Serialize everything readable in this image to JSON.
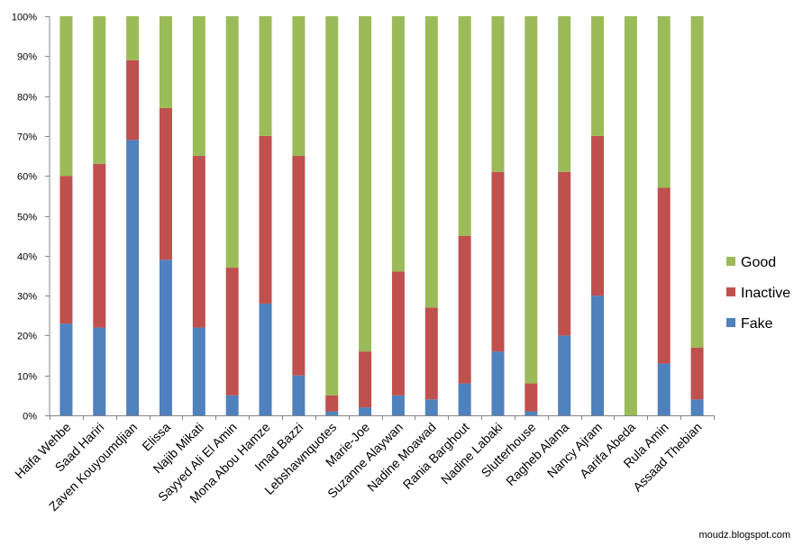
{
  "chart_data": {
    "type": "bar",
    "stacked": true,
    "percent": true,
    "categories": [
      "Haifa Wehbe",
      "Saad Hariri",
      "Zaven Kouyoumdjian",
      "Elissa",
      "Najib Mikati",
      "Sayyed Ali El Amin",
      "Mona Abou Hamze",
      "Imad Bazzi",
      "Lebshawnquotes",
      "Marie-Joe",
      "Suzanne Alaywan",
      "Nadine Moawad",
      "Rania Barghout",
      "Nadine Labaki",
      "Slutterhouse",
      "Ragheb Alama",
      "Nancy Ajram",
      "Aarifa Abeda",
      "Rula Amin",
      "Assaad Thebian"
    ],
    "series": [
      {
        "name": "Fake",
        "color": "#4f81bd",
        "values": [
          23,
          22,
          69,
          39,
          22,
          5,
          28,
          10,
          1,
          2,
          5,
          4,
          8,
          16,
          1,
          20,
          30,
          0,
          13,
          4
        ]
      },
      {
        "name": "Inactive",
        "color": "#c0504d",
        "values": [
          37,
          41,
          20,
          38,
          43,
          32,
          42,
          55,
          4,
          14,
          31,
          23,
          37,
          45,
          7,
          41,
          40,
          0,
          44,
          13
        ]
      },
      {
        "name": "Good",
        "color": "#9bbb59",
        "values": [
          40,
          37,
          11,
          23,
          35,
          63,
          30,
          35,
          95,
          84,
          64,
          73,
          55,
          39,
          92,
          39,
          30,
          100,
          43,
          83
        ]
      }
    ],
    "legend_order": [
      "Good",
      "Inactive",
      "Fake"
    ],
    "yticks": [
      "0%",
      "10%",
      "20%",
      "30%",
      "40%",
      "50%",
      "60%",
      "70%",
      "80%",
      "90%",
      "100%"
    ],
    "ylim": [
      0,
      100
    ],
    "legend_position": "right",
    "grid": false
  },
  "source_text": "moudz.blogspot.com"
}
